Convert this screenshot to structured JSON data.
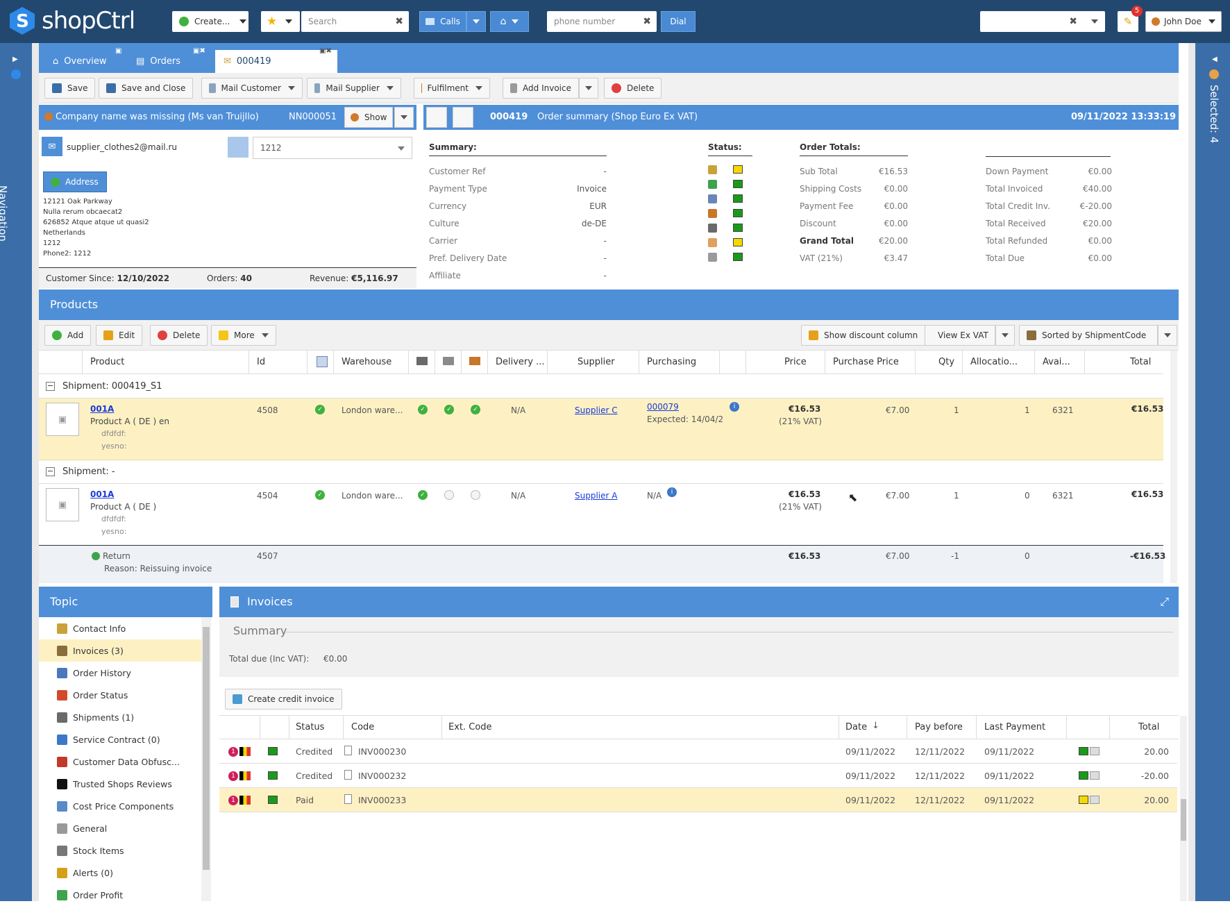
{
  "app": {
    "logo": "shopCtrl"
  },
  "topbar": {
    "create_label": "Create...",
    "search_placeholder": "Search",
    "calls_label": "Calls",
    "phone_placeholder": "phone number",
    "dial_label": "Dial",
    "notif_count": "5",
    "user_name": "John Doe"
  },
  "leftnav": {
    "label": "Navigation"
  },
  "rightnav": {
    "label": "Selected: 4"
  },
  "tabs": [
    {
      "label": "Overview"
    },
    {
      "label": "Orders"
    },
    {
      "label": "000419"
    }
  ],
  "toolbar": {
    "save": "Save",
    "save_close": "Save and Close",
    "mail_customer": "Mail Customer",
    "mail_supplier": "Mail Supplier",
    "fulfilment": "Fulfilment",
    "add_invoice": "Add Invoice",
    "delete": "Delete"
  },
  "customer": {
    "header": "Company name was missing (Ms van Truijllo)",
    "number": "NN000051",
    "show_label": "Show",
    "email": "supplier_clothes2@mail.ru",
    "select_value": "1212",
    "address_btn": "Address",
    "address_lines": [
      "12121 Oak Parkway",
      "Nulla rerum obcaecat2",
      "626852 Atque atque ut quasi2",
      "Netherlands",
      "1212",
      "Phone2: 1212"
    ],
    "since_label": "Customer Since:",
    "since_value": "12/10/2022",
    "orders_label": "Orders:",
    "orders_value": "40",
    "revenue_label": "Revenue:",
    "revenue_value": "€5,116.97"
  },
  "order": {
    "number": "000419",
    "title": "Order summary (Shop Euro Ex VAT)",
    "datetime": "09/11/2022 13:33:19",
    "summary_title": "Summary:",
    "summary": [
      {
        "label": "Customer Ref",
        "value": "-"
      },
      {
        "label": "Payment Type",
        "value": "Invoice"
      },
      {
        "label": "Currency",
        "value": "EUR"
      },
      {
        "label": "Culture",
        "value": "de-DE"
      },
      {
        "label": "Carrier",
        "value": "-"
      },
      {
        "label": "Pref. Delivery Date",
        "value": "-"
      },
      {
        "label": "Affiliate",
        "value": "-"
      }
    ],
    "status_title": "Status:",
    "status_colors": [
      "#f5d800",
      "#1a9a1a",
      "#1a9a1a",
      "#1a9a1a",
      "#1a9a1a",
      "#f5d800",
      "#1a9a1a"
    ],
    "totals_title": "Order Totals:",
    "totals": [
      {
        "label": "Sub Total",
        "value": "€16.53"
      },
      {
        "label": "Shipping Costs",
        "value": "€0.00"
      },
      {
        "label": "Payment Fee",
        "value": "€0.00"
      },
      {
        "label": "Discount",
        "value": "€0.00"
      },
      {
        "label": "Grand Total",
        "value": "€20.00"
      },
      {
        "label": "VAT (21%)",
        "value": "€3.47"
      }
    ],
    "totals2": [
      {
        "label": "Down Payment",
        "value": "€0.00"
      },
      {
        "label": "Total Invoiced",
        "value": "€40.00"
      },
      {
        "label": "Total Credit Inv.",
        "value": "€-20.00"
      },
      {
        "label": "Total Received",
        "value": "€20.00"
      },
      {
        "label": "Total Refunded",
        "value": "€0.00"
      },
      {
        "label": "Total Due",
        "value": "€0.00"
      }
    ]
  },
  "products": {
    "title": "Products",
    "add": "Add",
    "edit": "Edit",
    "delete": "Delete",
    "more": "More",
    "show_discount": "Show discount column",
    "view_ex_vat": "View Ex VAT",
    "sorted_by": "Sorted by ShipmentCode",
    "columns": [
      "Product",
      "Id",
      "Warehouse",
      "Delivery ...",
      "Supplier",
      "Purchasing",
      "Price",
      "Purchase Price",
      "Qty",
      "Allocatio...",
      "Avai...",
      "Total"
    ],
    "shipment1": "Shipment: 000419_S1",
    "shipment2": "Shipment: -",
    "rows": [
      {
        "code": "001A",
        "name": "Product A ( DE ) en",
        "attr1": "dfdfdf:",
        "attr2": "yesno:",
        "id": "4508",
        "warehouse": "London ware...",
        "delivery": "N/A",
        "supplier": "Supplier C",
        "purchasing": "000079",
        "expected": "Expected: 14/04/2",
        "price": "€16.53",
        "vat": "(21% VAT)",
        "purchase_price": "€7.00",
        "qty": "1",
        "alloc": "1",
        "avail": "6321",
        "total": "€16.53"
      },
      {
        "code": "001A",
        "name": "Product A ( DE )",
        "attr1": "dfdfdf:",
        "attr2": "yesno:",
        "id": "4504",
        "warehouse": "London ware...",
        "delivery": "N/A",
        "supplier": "Supplier A",
        "purchasing": "N/A",
        "price": "€16.53",
        "vat": "(21% VAT)",
        "purchase_price": "€7.00",
        "qty": "1",
        "alloc": "0",
        "avail": "6321",
        "total": "€16.53"
      }
    ],
    "return": {
      "label": "Return",
      "reason": "Reason: Reissuing invoice",
      "id": "4507",
      "price": "€16.53",
      "purchase_price": "€7.00",
      "qty": "-1",
      "alloc": "0",
      "total": "-€16.53"
    }
  },
  "topic": {
    "title": "Topic",
    "items": [
      {
        "label": "Contact Info",
        "color": "#c9a23a"
      },
      {
        "label": "Invoices (3)",
        "color": "#8a6d3b"
      },
      {
        "label": "Order History",
        "color": "#4a78b8"
      },
      {
        "label": "Order Status",
        "color": "#d24a2a"
      },
      {
        "label": "Shipments (1)",
        "color": "#6a6a6a"
      },
      {
        "label": "Service Contract (0)",
        "color": "#3b78c8"
      },
      {
        "label": "Customer Data Obfusc...",
        "color": "#c0392b"
      },
      {
        "label": "Trusted Shops Reviews",
        "color": "#111111"
      },
      {
        "label": "Cost Price Components",
        "color": "#5a8ac8"
      },
      {
        "label": "General",
        "color": "#999999"
      },
      {
        "label": "Stock Items",
        "color": "#777777"
      },
      {
        "label": "Alerts (0)",
        "color": "#d4a017"
      },
      {
        "label": "Order Profit",
        "color": "#3fa34d"
      }
    ]
  },
  "invoices": {
    "title": "Invoices",
    "summary_title": "Summary",
    "total_due_label": "Total due (Inc VAT):",
    "total_due_value": "€0.00",
    "create_credit": "Create credit invoice",
    "columns": [
      "Status",
      "Code",
      "Ext. Code",
      "Date",
      "Pay before",
      "Last Payment",
      "Total"
    ],
    "rows": [
      {
        "status": "Credited",
        "code": "INV000230",
        "date": "09/11/2022",
        "pay_before": "12/11/2022",
        "last_payment": "09/11/2022",
        "total": "20.00",
        "light": "#1a9a1a"
      },
      {
        "status": "Credited",
        "code": "INV000232",
        "date": "09/11/2022",
        "pay_before": "12/11/2022",
        "last_payment": "09/11/2022",
        "total": "-20.00",
        "light": "#1a9a1a"
      },
      {
        "status": "Paid",
        "code": "INV000233",
        "date": "09/11/2022",
        "pay_before": "12/11/2022",
        "last_payment": "09/11/2022",
        "total": "20.00",
        "light": "#f5d800"
      }
    ]
  }
}
